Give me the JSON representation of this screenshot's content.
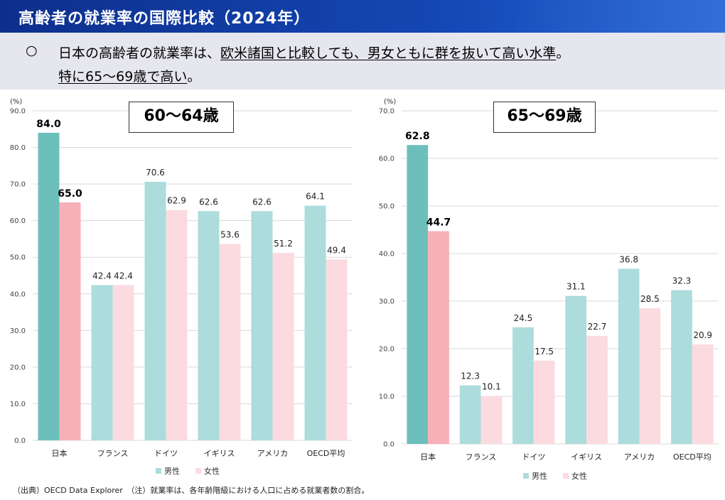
{
  "header": {
    "title": "高齢者の就業率の国際比較（2024年）"
  },
  "summary": {
    "bullet": "○",
    "line1_a": "日本の高齢者の就業率は、",
    "line1_b": "欧米諸国と比較しても、男女ともに群を抜いて高い水準",
    "line1_c": "。",
    "line2_a": "特に65～69歳で高い",
    "line2_b": "。"
  },
  "colors": {
    "japan_male": "#6dbfbb",
    "japan_female": "#f8b0b8",
    "male": "#acdcdb",
    "female": "#fbdbe0",
    "grid": "#d9d9d9"
  },
  "chart_data": [
    {
      "type": "bar",
      "panel_label": "60～64歳",
      "unit": "(%)",
      "categories": [
        "日本",
        "フランス",
        "ドイツ",
        "イギリス",
        "アメリカ",
        "OECD平均"
      ],
      "series": [
        {
          "name": "男性",
          "values": [
            84.0,
            42.4,
            70.6,
            62.6,
            62.6,
            64.1
          ]
        },
        {
          "name": "女性",
          "values": [
            65.0,
            42.4,
            62.9,
            53.6,
            51.2,
            49.4
          ]
        }
      ],
      "ylim": [
        0,
        90
      ],
      "yticks": [
        "0.0",
        "10.0",
        "20.0",
        "30.0",
        "40.0",
        "50.0",
        "60.0",
        "70.0",
        "80.0",
        "90.0"
      ],
      "highlight_category": "日本",
      "grid": true,
      "legend": "bottom"
    },
    {
      "type": "bar",
      "panel_label": "65～69歳",
      "unit": "(%)",
      "categories": [
        "日本",
        "フランス",
        "ドイツ",
        "イギリス",
        "アメリカ",
        "OECD平均"
      ],
      "series": [
        {
          "name": "男性",
          "values": [
            62.8,
            12.3,
            24.5,
            31.1,
            36.8,
            32.3
          ]
        },
        {
          "name": "女性",
          "values": [
            44.7,
            10.1,
            17.5,
            22.7,
            28.5,
            20.9
          ]
        }
      ],
      "ylim": [
        0,
        70
      ],
      "yticks": [
        "0.0",
        "10.0",
        "20.0",
        "30.0",
        "40.0",
        "50.0",
        "60.0",
        "70.0"
      ],
      "highlight_category": "日本",
      "grid": true,
      "legend": "bottom"
    }
  ],
  "footnote": "（出典）OECD Data Explorer　（注）就業率は、各年齢階級における人口に占める就業者数の割合。"
}
